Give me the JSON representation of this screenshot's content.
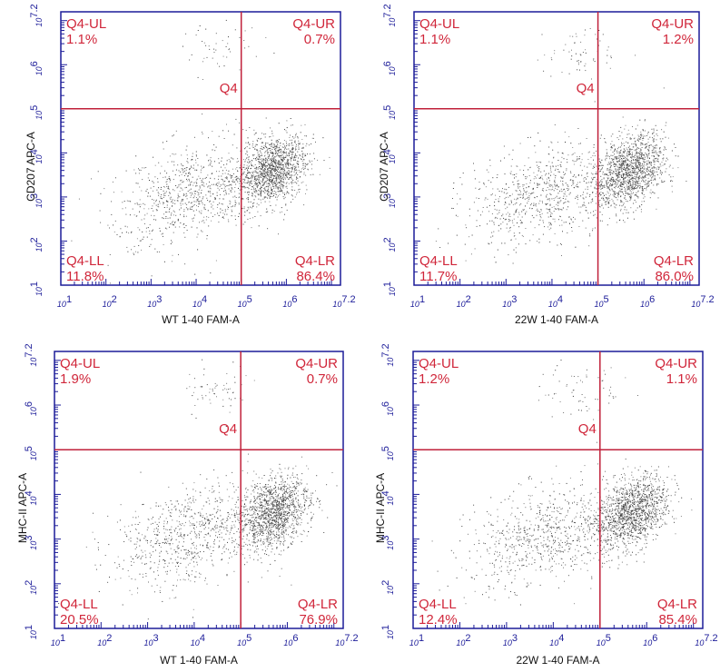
{
  "chart_data": [
    {
      "type": "scatter",
      "xlabel": "WT 1-40 FAM-A",
      "ylabel": "CD207 APC-A",
      "x_ticks": [
        "10^1",
        "10^2",
        "10^3",
        "10^4",
        "10^5",
        "10^6",
        "10^7.2"
      ],
      "y_ticks": [
        "10^1",
        "10^2",
        "10^3",
        "10^4",
        "10^5",
        "10^6",
        "10^7.2"
      ],
      "xlim": [
        1,
        7.2
      ],
      "ylim": [
        1,
        7.2
      ],
      "scale": "log10",
      "gate_label": "Q4",
      "gate": {
        "x": 5.0,
        "y": 5.0
      },
      "quadrants": [
        {
          "name": "Q4-UL",
          "percent": "1.1%"
        },
        {
          "name": "Q4-UR",
          "percent": "0.7%"
        },
        {
          "name": "Q4-LL",
          "percent": "11.8%"
        },
        {
          "name": "Q4-LR",
          "percent": "86.4%"
        }
      ]
    },
    {
      "type": "scatter",
      "xlabel": "22W 1-40 FAM-A",
      "ylabel": "CD207 APC-A",
      "x_ticks": [
        "10^1",
        "10^2",
        "10^3",
        "10^4",
        "10^5",
        "10^6",
        "10^7.2"
      ],
      "y_ticks": [
        "10^1",
        "10^2",
        "10^3",
        "10^4",
        "10^5",
        "10^6",
        "10^7.2"
      ],
      "xlim": [
        1,
        7.2
      ],
      "ylim": [
        1,
        7.2
      ],
      "scale": "log10",
      "gate_label": "Q4",
      "gate": {
        "x": 5.0,
        "y": 5.0
      },
      "quadrants": [
        {
          "name": "Q4-UL",
          "percent": "1.1%"
        },
        {
          "name": "Q4-UR",
          "percent": "1.2%"
        },
        {
          "name": "Q4-LL",
          "percent": "11.7%"
        },
        {
          "name": "Q4-LR",
          "percent": "86.0%"
        }
      ]
    },
    {
      "type": "scatter",
      "xlabel": "WT 1-40 FAM-A",
      "ylabel": "MHC-II APC-A",
      "x_ticks": [
        "10^1",
        "10^2",
        "10^3",
        "10^4",
        "10^5",
        "10^6",
        "10^7.2"
      ],
      "y_ticks": [
        "10^1",
        "10^2",
        "10^3",
        "10^4",
        "10^5",
        "10^6",
        "10^7.2"
      ],
      "xlim": [
        1,
        7.2
      ],
      "ylim": [
        1,
        7.2
      ],
      "scale": "log10",
      "gate_label": "Q4",
      "gate": {
        "x": 5.0,
        "y": 5.0
      },
      "quadrants": [
        {
          "name": "Q4-UL",
          "percent": "1.9%"
        },
        {
          "name": "Q4-UR",
          "percent": "0.7%"
        },
        {
          "name": "Q4-LL",
          "percent": "20.5%"
        },
        {
          "name": "Q4-LR",
          "percent": "76.9%"
        }
      ]
    },
    {
      "type": "scatter",
      "xlabel": "22W 1-40 FAM-A",
      "ylabel": "MHC-II APC-A",
      "x_ticks": [
        "10^1",
        "10^2",
        "10^3",
        "10^4",
        "10^5",
        "10^6",
        "10^7.2"
      ],
      "y_ticks": [
        "10^1",
        "10^2",
        "10^3",
        "10^4",
        "10^5",
        "10^6",
        "10^7.2"
      ],
      "xlim": [
        1,
        7.2
      ],
      "ylim": [
        1,
        7.2
      ],
      "scale": "log10",
      "gate_label": "Q4",
      "gate": {
        "x": 5.0,
        "y": 5.0
      },
      "quadrants": [
        {
          "name": "Q4-UL",
          "percent": "1.2%"
        },
        {
          "name": "Q4-UR",
          "percent": "1.1%"
        },
        {
          "name": "Q4-LL",
          "percent": "12.4%"
        },
        {
          "name": "Q4-LR",
          "percent": "85.4%"
        }
      ]
    }
  ],
  "colors": {
    "frame": "#1c1c99",
    "gate": "#c0203a",
    "quadrant_text": "#d0263a",
    "dots": "#333333"
  }
}
